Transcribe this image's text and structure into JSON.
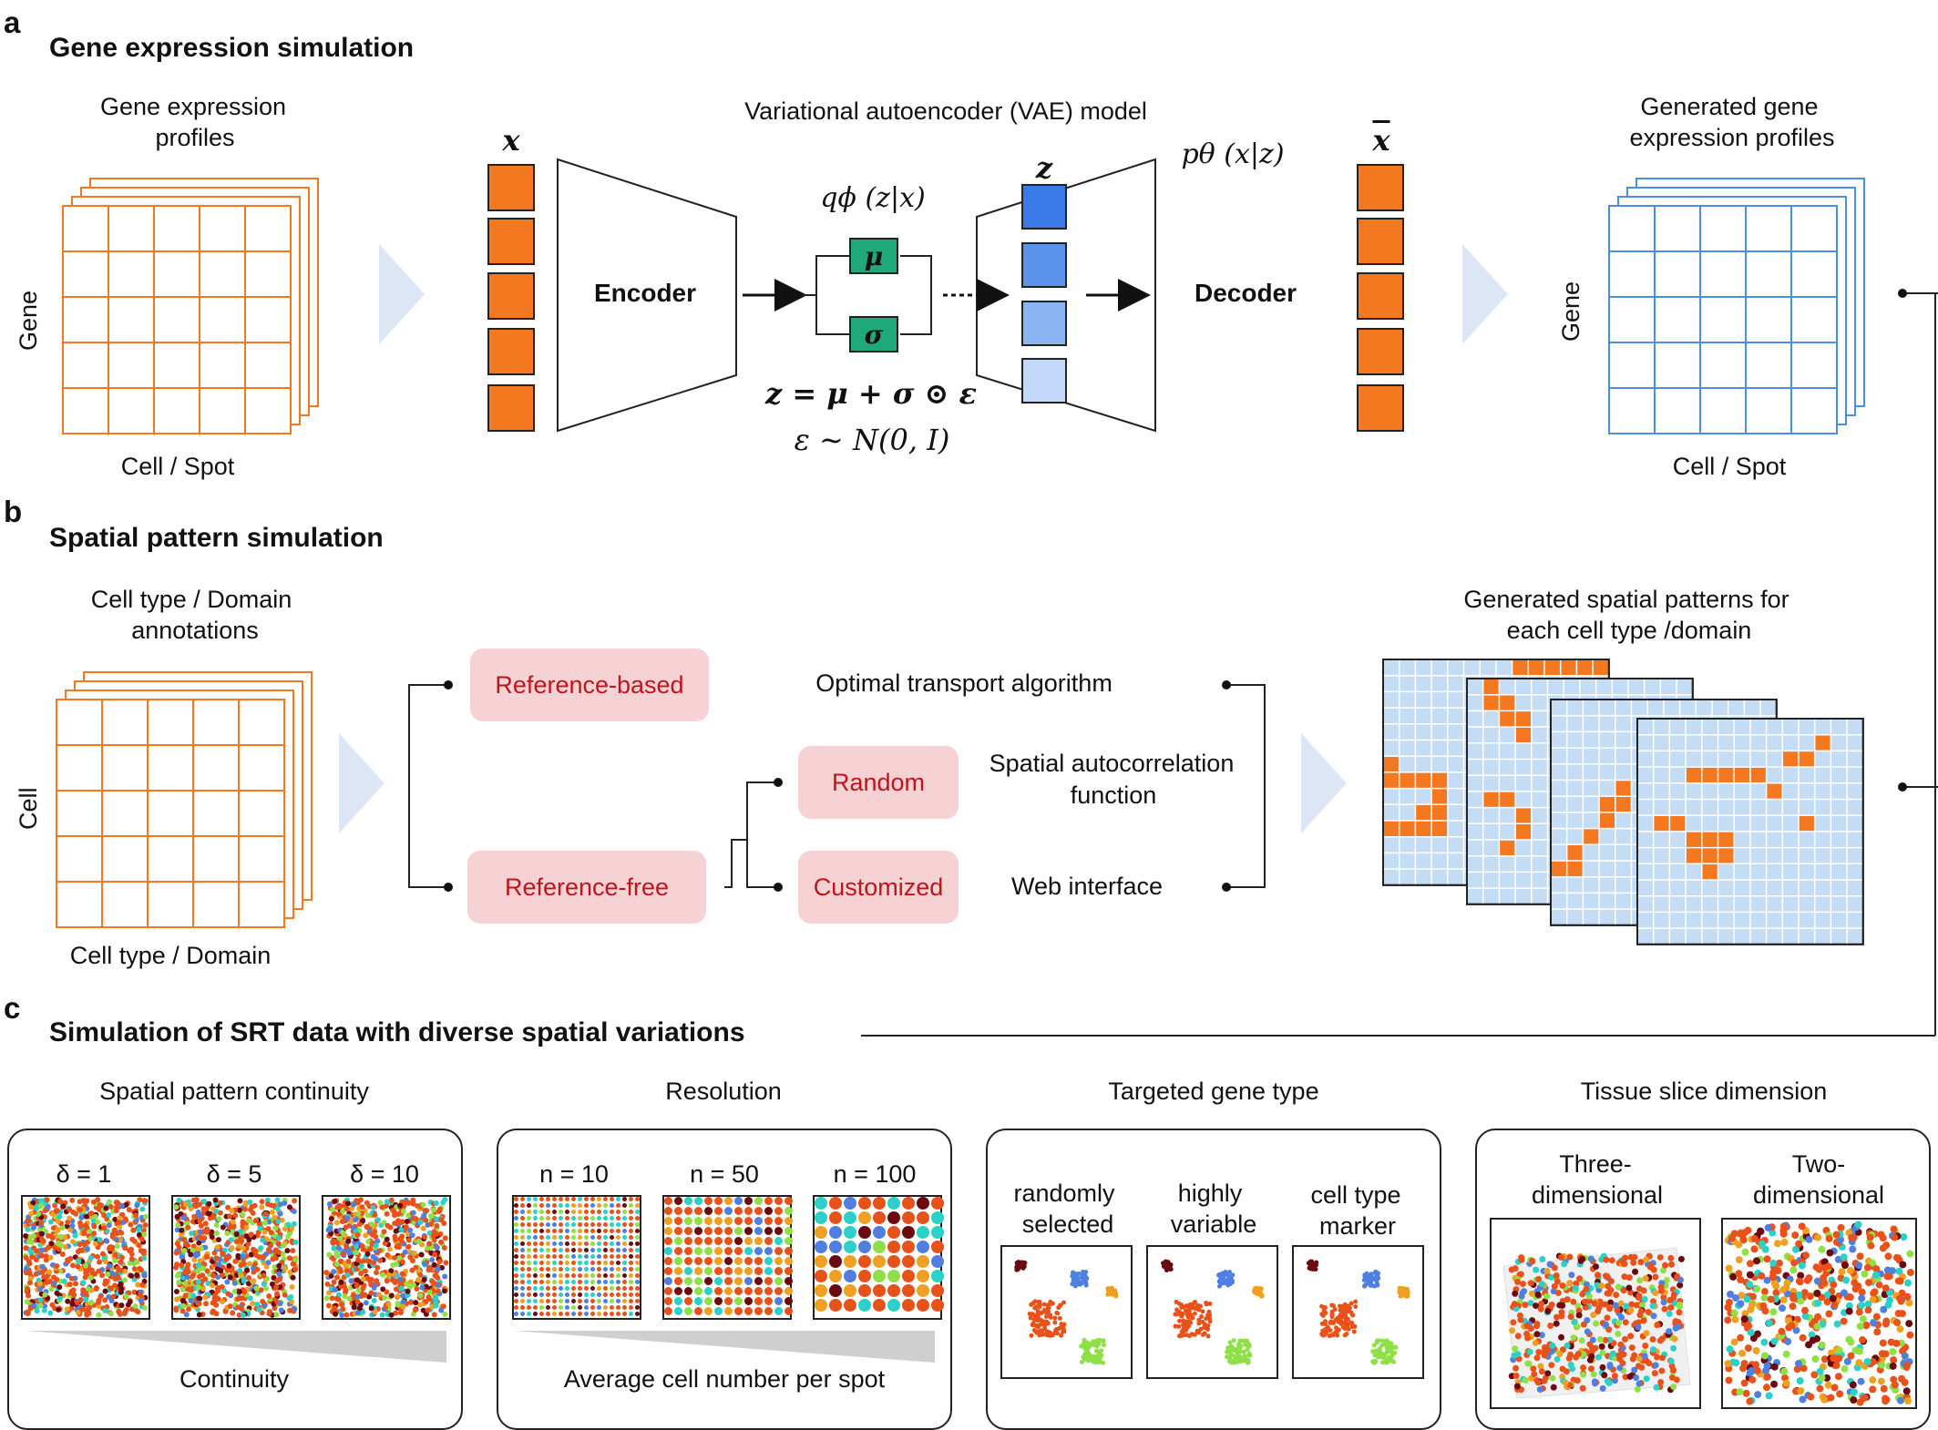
{
  "panel_a": {
    "letter": "a",
    "title": "Gene expression simulation",
    "input_label_line1": "Gene expression",
    "input_label_line2": "profiles",
    "axis_gene": "Gene",
    "axis_cell_spot": "Cell / Spot",
    "vae_title": "Variational autoencoder (VAE) model",
    "x_symbol": "x",
    "xbar_symbol": "x",
    "z_symbol": "z",
    "encoder_label": "Encoder",
    "decoder_label": "Decoder",
    "q_label": "qϕ (z|x)",
    "p_label": "pθ (x|z)",
    "mu_symbol": "μ",
    "sigma_symbol": "σ",
    "reparam_eq": "z = μ + σ ⊙ ε",
    "noise_eq": "ε ∼ N(0, I)",
    "output_label_line1": "Generated gene",
    "output_label_line2": "expression profiles",
    "output_axis_gene": "Gene",
    "output_axis_cell_spot": "Cell / Spot"
  },
  "panel_b": {
    "letter": "b",
    "title": "Spatial pattern simulation",
    "input_label_line1": "Cell type / Domain",
    "input_label_line2": "annotations",
    "axis_cell": "Cell",
    "axis_cell_type": "Cell type / Domain",
    "reference_based": "Reference-based",
    "reference_free": "Reference-free",
    "random": "Random",
    "customized": "Customized",
    "optimal_transport": "Optimal transport algorithm",
    "autocorr_line1": "Spatial autocorrelation",
    "autocorr_line2": "function",
    "web_interface": "Web interface",
    "output_label_line1": "Generated spatial patterns for",
    "output_label_line2": "each cell type /domain"
  },
  "panel_c": {
    "letter": "c",
    "title": "Simulation of  SRT data with diverse spatial variations",
    "groups": [
      {
        "title": "Spatial pattern continuity",
        "items": [
          "δ = 1",
          "δ = 5",
          "δ = 10"
        ],
        "footer": "Continuity"
      },
      {
        "title": "Resolution",
        "items": [
          "n = 10",
          "n = 50",
          "n = 100"
        ],
        "footer": "Average cell number per spot"
      },
      {
        "title": "Targeted gene type",
        "items": [
          [
            "randomly",
            "selected"
          ],
          [
            "highly",
            "variable"
          ],
          [
            "cell type",
            "marker"
          ]
        ]
      },
      {
        "title": "Tissue slice dimension",
        "items": [
          [
            "Three-",
            "dimensional"
          ],
          [
            "Two-",
            "dimensional"
          ]
        ]
      }
    ]
  },
  "colors": {
    "orange": "#f47820",
    "blue_grid": "#4a8fe0",
    "light_blue": "#c5dcf5",
    "green_box": "#1fa87a",
    "pill_bg": "#f6d2d4",
    "pill_text": "#c0141b",
    "arrow_fill": "#dce6f5",
    "latent": [
      "#3a7ae8",
      "#5b93ec",
      "#8bb4f2",
      "#c2d8f8"
    ]
  }
}
